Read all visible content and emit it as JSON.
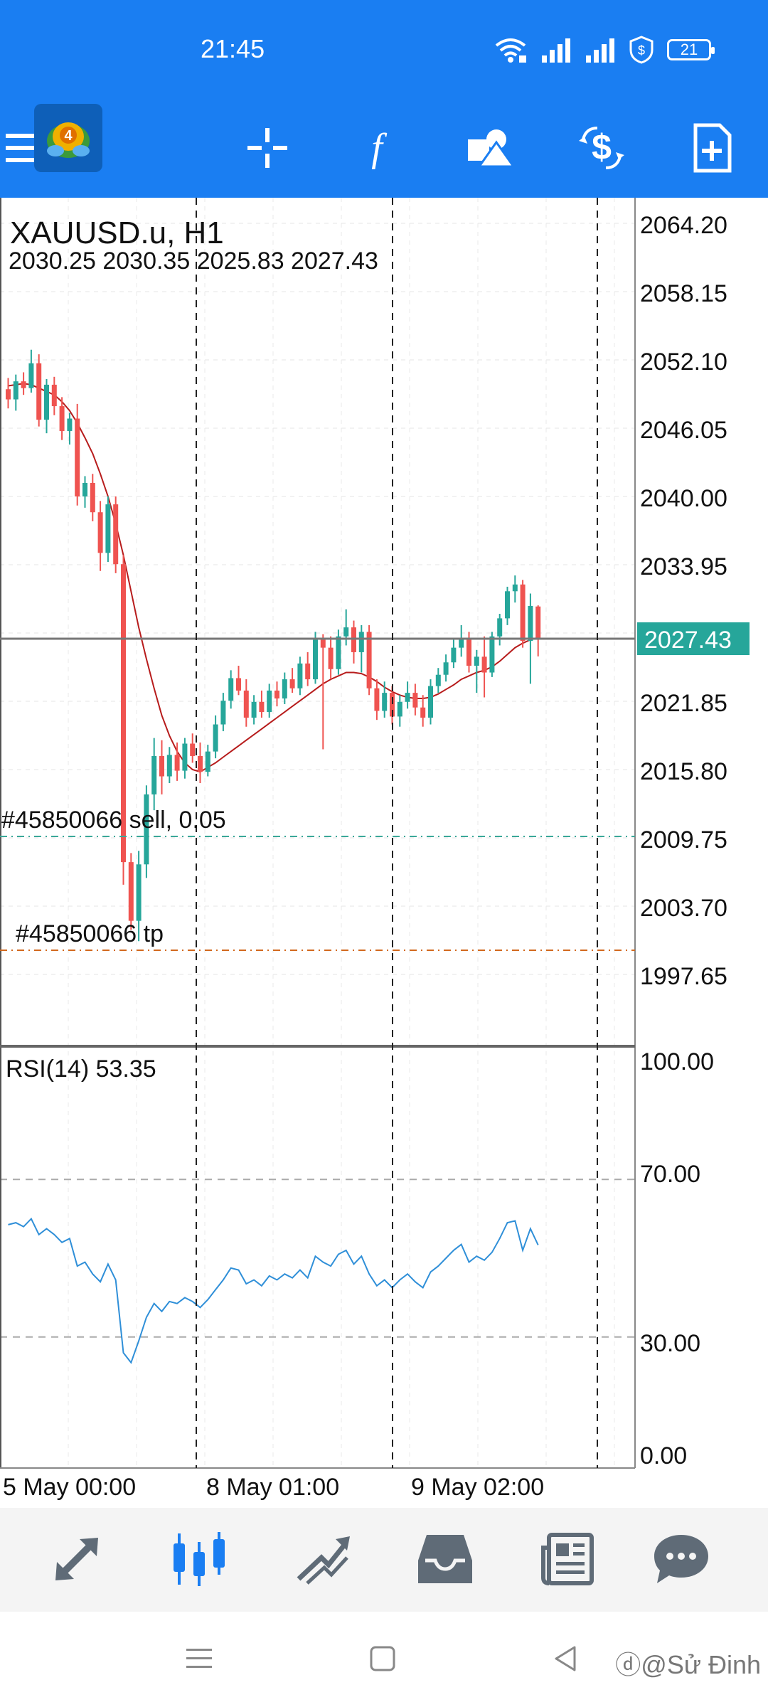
{
  "status_bar": {
    "time": "21:45",
    "battery": "21",
    "icons": [
      "wifi-icon",
      "signal-icon",
      "signal-icon",
      "shield-icon",
      "battery-icon"
    ]
  },
  "toolbar": {
    "icons": [
      "menu-icon",
      "app-logo",
      "crosshair-icon",
      "indicators-icon",
      "objects-icon",
      "trade-icon",
      "new-order-icon"
    ]
  },
  "chart": {
    "symbol_label": "XAUUSD.u, H1",
    "ohlc_label": "2030.25 2030.35 2025.83 2027.43",
    "current_price": "2027.43",
    "price_ticks": [
      "2064.20",
      "2058.15",
      "2052.10",
      "2046.05",
      "2040.00",
      "2033.95",
      "2021.85",
      "2015.80",
      "2009.75",
      "2003.70",
      "1997.65"
    ],
    "order_label": "#45850066 sell, 0.05",
    "tp_label": "#45850066 tp",
    "colors": {
      "bull": "#26a69a",
      "bear": "#ef5350",
      "ma": "#b71c1c",
      "rsi": "#2f8fd8",
      "price_badge": "#26a69a"
    }
  },
  "rsi": {
    "label": "RSI(14) 53.35",
    "ticks": [
      "100.00",
      "70.00",
      "30.00",
      "0.00"
    ]
  },
  "time_axis": {
    "labels": [
      "5 May 00:00",
      "8 May 01:00",
      "9 May 02:00"
    ]
  },
  "bottom_nav": {
    "icons": [
      "quotes-icon",
      "chart-icon",
      "trade-icon",
      "history-icon",
      "news-icon",
      "chat-icon"
    ],
    "active": "chart-icon"
  },
  "system_nav": {
    "icons": [
      "recents-icon",
      "home-icon",
      "back-icon"
    ]
  },
  "watermark": "ⓓ@Sử Đinh",
  "candles": [
    [
      2049.5,
      2050.5,
      2047.8,
      2048.6
    ],
    [
      2048.6,
      2050.8,
      2047.6,
      2050.2
    ],
    [
      2050.2,
      2051.0,
      2049.0,
      2049.6
    ],
    [
      2049.6,
      2053.0,
      2049.2,
      2051.8
    ],
    [
      2051.8,
      2052.6,
      2046.2,
      2046.8
    ],
    [
      2046.8,
      2050.4,
      2045.6,
      2049.9
    ],
    [
      2049.9,
      2050.6,
      2047.2,
      2048.0
    ],
    [
      2048.0,
      2048.8,
      2045.0,
      2045.8
    ],
    [
      2045.8,
      2047.4,
      2044.6,
      2046.9
    ],
    [
      2046.9,
      2048.2,
      2039.2,
      2040.0
    ],
    [
      2040.0,
      2041.8,
      2039.0,
      2041.2
    ],
    [
      2041.2,
      2042.0,
      2037.8,
      2038.6
    ],
    [
      2038.6,
      2039.6,
      2033.4,
      2035.0
    ],
    [
      2035.0,
      2040.0,
      2034.2,
      2039.3
    ],
    [
      2039.3,
      2040.0,
      2033.2,
      2034.0
    ],
    [
      2034.0,
      2034.8,
      2005.6,
      2007.6
    ],
    [
      2007.6,
      2008.4,
      2001.6,
      2002.4
    ],
    [
      2002.4,
      2008.6,
      2000.6,
      2007.4
    ],
    [
      2007.4,
      2014.4,
      2006.2,
      2013.6
    ],
    [
      2013.6,
      2018.6,
      2012.2,
      2017.0
    ],
    [
      2017.0,
      2018.4,
      2013.6,
      2015.2
    ],
    [
      2015.2,
      2017.8,
      2014.6,
      2017.1
    ],
    [
      2017.1,
      2018.2,
      2014.8,
      2015.7
    ],
    [
      2015.7,
      2018.6,
      2015.0,
      2018.1
    ],
    [
      2018.1,
      2019.0,
      2016.4,
      2017.0
    ],
    [
      2017.0,
      2018.2,
      2014.6,
      2015.6
    ],
    [
      2015.6,
      2018.0,
      2015.2,
      2017.4
    ],
    [
      2017.4,
      2020.6,
      2016.8,
      2019.8
    ],
    [
      2019.8,
      2022.6,
      2019.2,
      2021.9
    ],
    [
      2021.9,
      2024.6,
      2021.2,
      2023.9
    ],
    [
      2023.9,
      2025.0,
      2022.4,
      2022.8
    ],
    [
      2022.8,
      2023.8,
      2019.6,
      2020.4
    ],
    [
      2020.4,
      2022.4,
      2019.8,
      2021.8
    ],
    [
      2021.8,
      2022.8,
      2020.4,
      2020.9
    ],
    [
      2020.9,
      2023.4,
      2020.4,
      2022.8
    ],
    [
      2022.8,
      2023.6,
      2021.4,
      2022.1
    ],
    [
      2022.1,
      2024.4,
      2021.6,
      2023.8
    ],
    [
      2023.8,
      2024.8,
      2022.6,
      2023.0
    ],
    [
      2023.0,
      2025.8,
      2022.4,
      2025.2
    ],
    [
      2025.2,
      2026.2,
      2023.2,
      2023.8
    ],
    [
      2023.8,
      2028.0,
      2023.4,
      2027.3
    ],
    [
      2027.3,
      2027.8,
      2017.6,
      2026.6
    ],
    [
      2026.6,
      2027.6,
      2023.8,
      2024.7
    ],
    [
      2024.7,
      2028.2,
      2024.2,
      2027.6
    ],
    [
      2027.6,
      2030.0,
      2026.8,
      2028.4
    ],
    [
      2028.4,
      2029.0,
      2025.2,
      2026.2
    ],
    [
      2026.2,
      2028.6,
      2024.4,
      2028.0
    ],
    [
      2028.0,
      2028.6,
      2022.4,
      2023.0
    ],
    [
      2023.0,
      2023.8,
      2020.2,
      2021.0
    ],
    [
      2021.0,
      2023.6,
      2020.4,
      2022.6
    ],
    [
      2022.6,
      2023.2,
      2019.8,
      2020.5
    ],
    [
      2020.5,
      2022.4,
      2019.6,
      2021.8
    ],
    [
      2021.8,
      2023.6,
      2021.2,
      2022.6
    ],
    [
      2022.6,
      2023.4,
      2020.6,
      2021.3
    ],
    [
      2021.3,
      2022.4,
      2019.6,
      2020.4
    ],
    [
      2020.4,
      2023.8,
      2019.8,
      2023.2
    ],
    [
      2023.2,
      2024.8,
      2022.6,
      2024.2
    ],
    [
      2024.2,
      2026.0,
      2023.6,
      2025.3
    ],
    [
      2025.3,
      2027.4,
      2024.8,
      2026.6
    ],
    [
      2026.6,
      2028.6,
      2025.8,
      2027.4
    ],
    [
      2027.4,
      2028.0,
      2024.4,
      2025.0
    ],
    [
      2025.0,
      2026.4,
      2022.6,
      2025.8
    ],
    [
      2025.8,
      2027.6,
      2022.2,
      2024.4
    ],
    [
      2024.4,
      2028.0,
      2024.0,
      2027.6
    ],
    [
      2027.6,
      2029.6,
      2026.8,
      2029.2
    ],
    [
      2029.2,
      2032.0,
      2028.6,
      2031.6
    ],
    [
      2031.6,
      2033.0,
      2030.6,
      2032.2
    ],
    [
      2032.2,
      2032.6,
      2026.6,
      2027.2
    ],
    [
      2027.2,
      2031.4,
      2023.4,
      2030.3
    ],
    [
      2030.25,
      2030.35,
      2025.83,
      2027.43
    ]
  ],
  "ma_values": [
    2049.8,
    2049.9,
    2050.0,
    2049.9,
    2049.6,
    2049.3,
    2049.0,
    2048.4,
    2047.6,
    2046.5,
    2045.2,
    2043.8,
    2042.0,
    2040.0,
    2037.6,
    2034.8,
    2031.6,
    2028.4,
    2025.6,
    2023.0,
    2020.6,
    2018.8,
    2017.4,
    2016.4,
    2015.8,
    2015.6,
    2016.0,
    2016.4,
    2016.9,
    2017.4,
    2017.9,
    2018.4,
    2018.9,
    2019.4,
    2019.9,
    2020.4,
    2020.9,
    2021.4,
    2021.9,
    2022.4,
    2022.9,
    2023.4,
    2023.8,
    2024.1,
    2024.4,
    2024.4,
    2024.3,
    2024.0,
    2023.6,
    2023.1,
    2022.7,
    2022.4,
    2022.2,
    2022.1,
    2022.1,
    2022.2,
    2022.5,
    2022.9,
    2023.3,
    2023.8,
    2024.1,
    2024.4,
    2024.6,
    2024.9,
    2025.4,
    2026.0,
    2026.6,
    2027.0,
    2027.3,
    2027.5
  ],
  "rsi_values": [
    58.5,
    59.0,
    58.0,
    60.0,
    56.0,
    57.5,
    56.0,
    54.0,
    55.0,
    48.0,
    49.0,
    46.0,
    44.0,
    48.5,
    44.5,
    26.0,
    23.5,
    29.0,
    35.0,
    38.5,
    36.5,
    39.0,
    38.5,
    40.0,
    39.0,
    37.5,
    39.5,
    42.0,
    44.5,
    47.5,
    47.0,
    43.5,
    44.5,
    43.0,
    45.5,
    44.5,
    46.0,
    45.0,
    47.0,
    45.0,
    50.5,
    49.0,
    48.0,
    51.0,
    52.0,
    48.5,
    50.5,
    46.0,
    43.0,
    44.5,
    42.5,
    44.5,
    46.0,
    44.0,
    42.5,
    46.5,
    48.0,
    50.0,
    52.0,
    53.5,
    49.0,
    50.5,
    49.5,
    51.5,
    55.0,
    59.0,
    59.5,
    52.0,
    57.5,
    53.35
  ]
}
